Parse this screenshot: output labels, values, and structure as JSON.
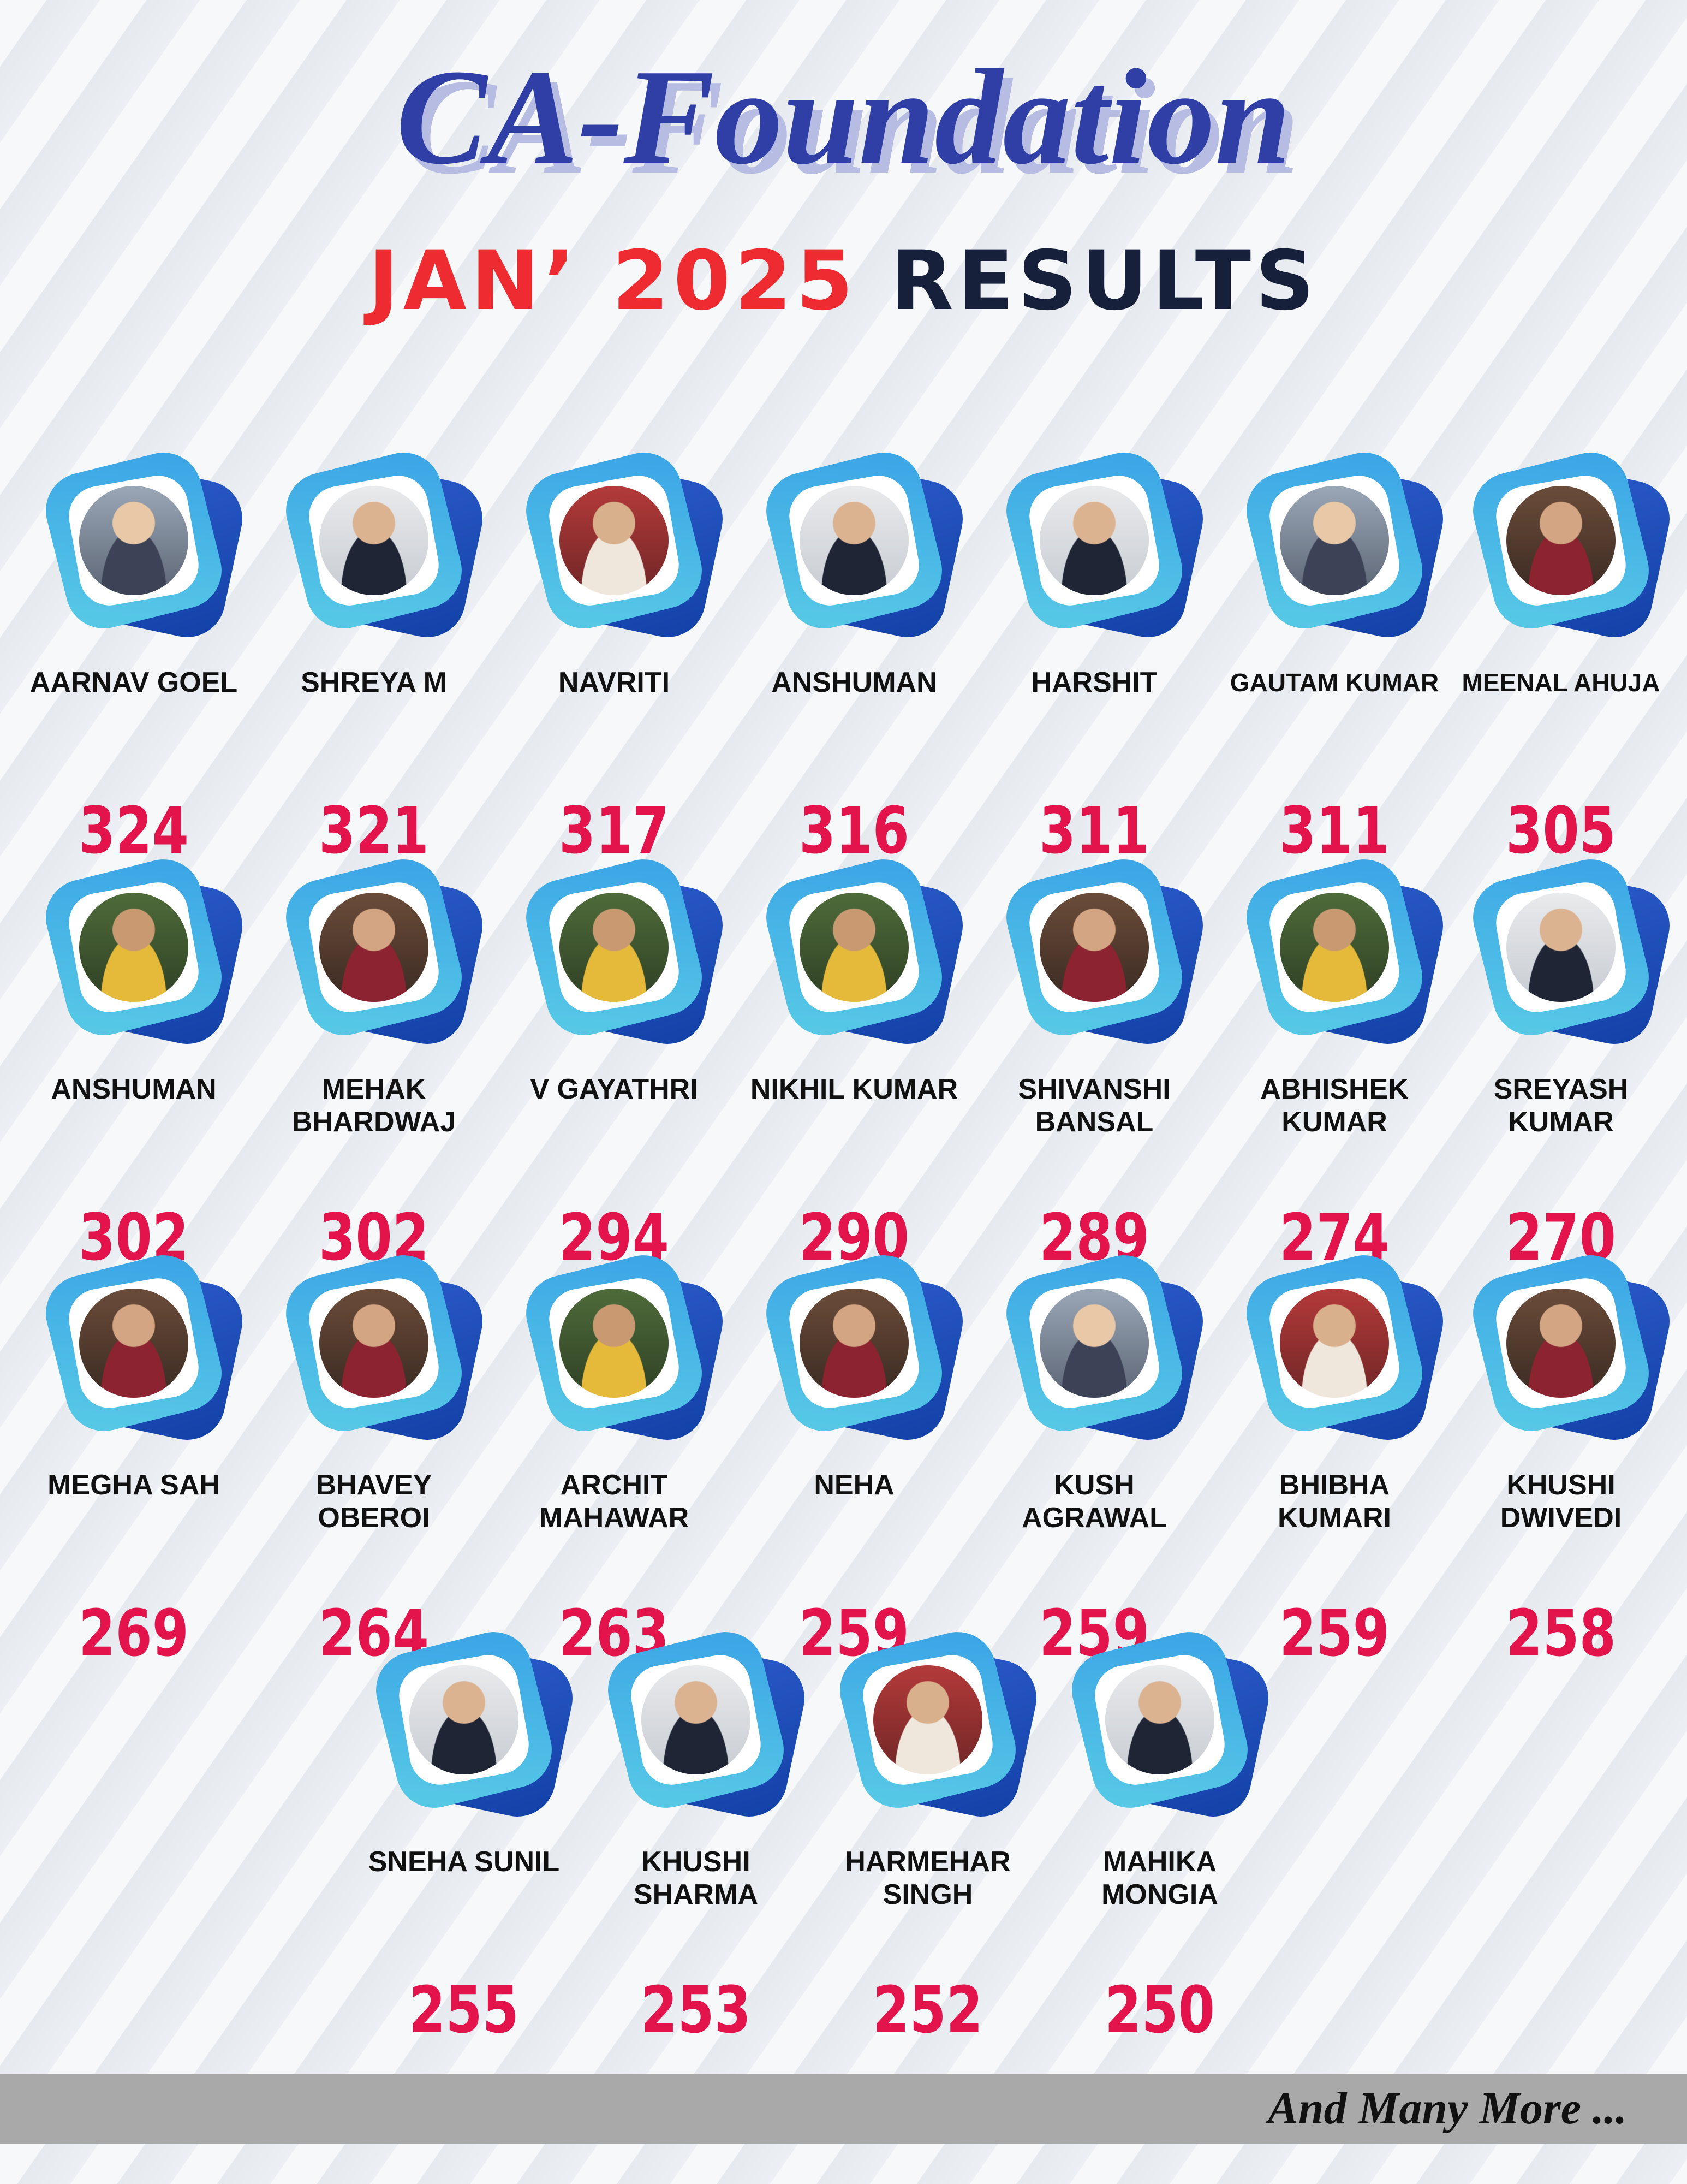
{
  "header": {
    "title": "CA-Foundation",
    "subtitle_highlight": "JAN’ 2025",
    "subtitle_rest": "RESULTS"
  },
  "colors": {
    "title": "#2f3fa6",
    "title_shadow": "#b6bce2",
    "subtitle_red": "#ee2b30",
    "subtitle_dark": "#16203a",
    "score": "#e3134b",
    "frame_light": "#3aa3e6",
    "frame_dark": "#1140a6",
    "footer_bar": "#a9a9a9"
  },
  "students": [
    {
      "name": "AARNAV GOEL",
      "score": "324"
    },
    {
      "name": "SHREYA M",
      "score": "321"
    },
    {
      "name": "NAVRITI",
      "score": "317"
    },
    {
      "name": "ANSHUMAN",
      "score": "316"
    },
    {
      "name": "HARSHIT",
      "score": "311"
    },
    {
      "name": "GAUTAM KUMAR",
      "score": "311"
    },
    {
      "name": "MEENAL AHUJA",
      "score": "305"
    },
    {
      "name": "ANSHUMAN",
      "score": "302"
    },
    {
      "name": "MEHAK\nBHARDWAJ",
      "score": "302"
    },
    {
      "name": "V GAYATHRI",
      "score": "294"
    },
    {
      "name": "NIKHIL KUMAR",
      "score": "290"
    },
    {
      "name": "SHIVANSHI\nBANSAL",
      "score": "289"
    },
    {
      "name": "ABHISHEK\nKUMAR",
      "score": "274"
    },
    {
      "name": "SREYASH\nKUMAR",
      "score": "270"
    },
    {
      "name": "MEGHA SAH",
      "score": "269"
    },
    {
      "name": "BHAVEY\nOBEROI",
      "score": "264"
    },
    {
      "name": "ARCHIT\nMAHAWAR",
      "score": "263"
    },
    {
      "name": "NEHA",
      "score": "259"
    },
    {
      "name": "KUSH\nAGRAWAL",
      "score": "259"
    },
    {
      "name": "BHIBHA\nKUMARI",
      "score": "259"
    },
    {
      "name": "KHUSHI\nDWIVEDI",
      "score": "258"
    },
    {
      "name": "SNEHA SUNIL",
      "score": "255"
    },
    {
      "name": "KHUSHI\nSHARMA",
      "score": "253"
    },
    {
      "name": "HARMEHAR\nSINGH",
      "score": "252"
    },
    {
      "name": "MAHIKA\nMONGIA",
      "score": "250"
    }
  ],
  "footer": {
    "text": "And Many More ..."
  }
}
